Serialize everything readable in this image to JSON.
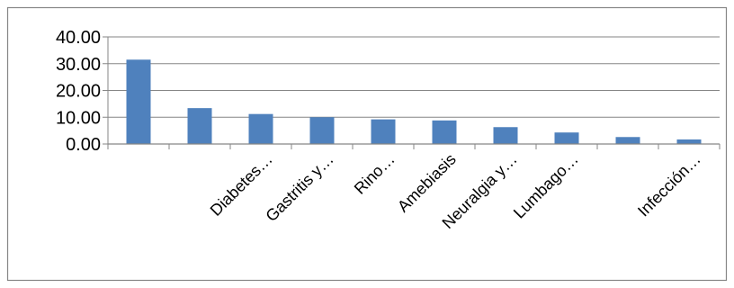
{
  "chart_data": {
    "type": "bar",
    "categories": [
      "",
      "",
      "Diabetes…",
      "Gastritis y…",
      "Rino…",
      "Amebiasis",
      "Neuralgia y…",
      "Lumbago…",
      "",
      "Infección…"
    ],
    "values": [
      31.5,
      13.4,
      11.2,
      10.0,
      9.2,
      8.8,
      6.3,
      4.3,
      2.6,
      1.7
    ],
    "yticks": [
      "0.00",
      "10.00",
      "20.00",
      "30.00",
      "40.00"
    ],
    "ylim": [
      0,
      40
    ],
    "grid": true,
    "title": "",
    "xlabel": "",
    "ylabel": "",
    "colors": {
      "bar": "#4F81BD",
      "grid": "#868686",
      "frame": "#868686"
    }
  }
}
